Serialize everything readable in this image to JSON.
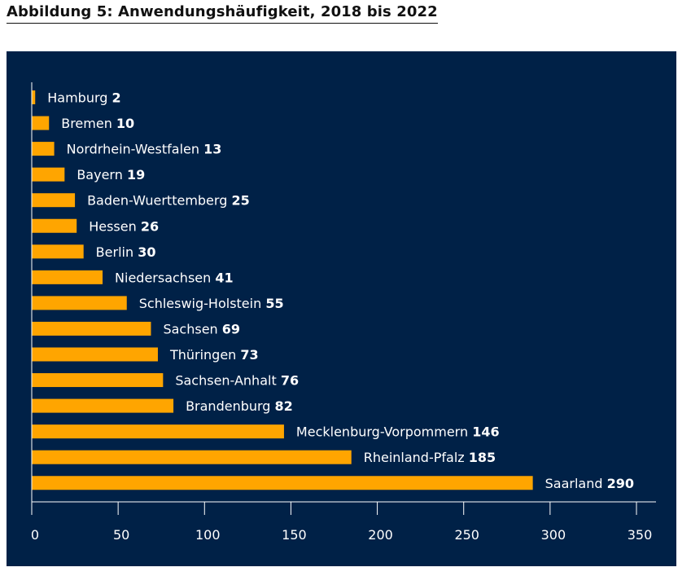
{
  "figure": {
    "title": "Abbildung 5: Anwendungshäufigkeit, 2018 bis 2022"
  },
  "chart_data": {
    "type": "bar",
    "orientation": "horizontal",
    "title": "Abbildung 5: Anwendungshäufigkeit, 2018 bis 2022",
    "categories": [
      "Hamburg",
      "Bremen",
      "Nordrhein-Westfalen",
      "Bayern",
      "Baden-Wuerttemberg",
      "Hessen",
      "Berlin",
      "Niedersachsen",
      "Schleswig-Holstein",
      "Sachsen",
      "Thüringen",
      "Sachsen-Anhalt",
      "Brandenburg",
      "Mecklenburg-Vorpommern",
      "Rheinland-Pfalz",
      "Saarland"
    ],
    "values": [
      2,
      10,
      13,
      19,
      25,
      26,
      30,
      41,
      55,
      69,
      73,
      76,
      82,
      146,
      185,
      290
    ],
    "xlim": [
      0,
      350
    ],
    "xticks": [
      0,
      50,
      100,
      150,
      200,
      250,
      300,
      350
    ],
    "xlabel": "",
    "ylabel": "",
    "grid": false,
    "legend": "none",
    "colors": {
      "background": "#002147",
      "bar": "#FFA500",
      "text": "#ffffff",
      "axis": "#ffffff"
    }
  }
}
